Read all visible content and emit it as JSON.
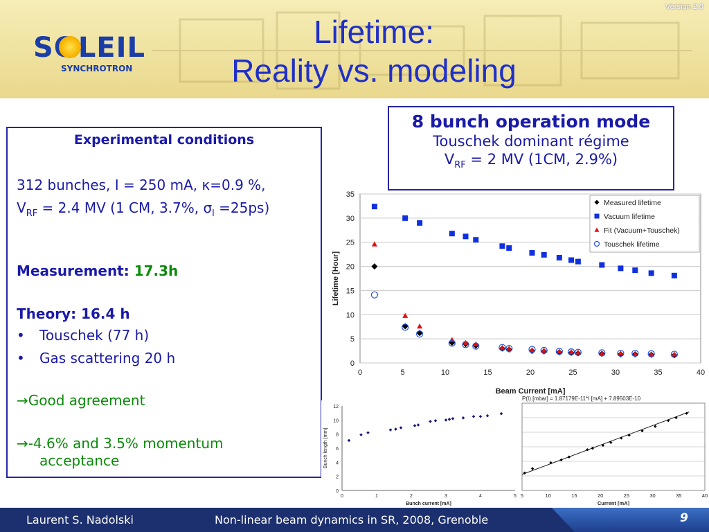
{
  "version": "Version 2.0",
  "logo": {
    "word": "SOLEIL",
    "sub": "SYNCHROTRON"
  },
  "title": {
    "line1": "Lifetime:",
    "line2": "Reality vs. modeling"
  },
  "left_box": {
    "heading": "Experimental conditions",
    "cond_line1": "312 bunches, I = 250 mA, κ=0.9 %,",
    "cond_line2_pre": "V",
    "cond_line2_sub": "RF",
    "cond_line2_post": " = 2.4 MV (1 CM, 3.7%, σ",
    "cond_line2_sub2": "l",
    "cond_line2_end": " =25ps)",
    "measurement_label": "Measurement:",
    "measurement_value": "17.3h",
    "theory_label": "Theory: 16.4 h",
    "bullets": [
      "Touschek (77 h)",
      "Gas scattering 20 h"
    ],
    "good": "→Good agreement",
    "acceptance1": "→-4.6% and 3.5% momentum",
    "acceptance2": "acceptance"
  },
  "right_box": {
    "line1": "8 bunch operation mode",
    "line2": "Touschek dominant régime",
    "line3_pre": "V",
    "line3_sub": "RF",
    "line3_post": " = 2 MV (1CM, 2.9%)"
  },
  "footer": {
    "author": "Laurent S. Nadolski",
    "conference": "Non-linear beam dynamics in SR,  2008, Grenoble",
    "page": "9"
  },
  "colors": {
    "blue_text": "#1a1aa8",
    "title": "#1f2fc8",
    "green": "#0a8a0a",
    "vacuum": "#1030e0",
    "fit": "#e01010",
    "touschek": "#2050e0"
  },
  "chart_data": [
    {
      "type": "scatter",
      "xlabel": "Beam Current [mA]",
      "ylabel": "Lifetime [Hour]",
      "xlim": [
        0,
        40
      ],
      "ylim": [
        0,
        35
      ],
      "xticks": [
        0,
        5,
        10,
        15,
        20,
        25,
        30,
        35,
        40
      ],
      "yticks": [
        0,
        5,
        10,
        15,
        20,
        25,
        30,
        35
      ],
      "grid": true,
      "legend": "top-right",
      "series": [
        {
          "name": "Measured lifetime",
          "marker": "diamond",
          "color": "#000000",
          "x": [
            1.7,
            5.3,
            7.0,
            10.8,
            12.4,
            13.6,
            16.7,
            17.5,
            20.2,
            21.6,
            23.4,
            24.8,
            25.6,
            28.4,
            30.6,
            32.3,
            34.2,
            36.9
          ],
          "y": [
            20.0,
            7.6,
            6.2,
            4.2,
            3.9,
            3.6,
            3.0,
            2.8,
            2.5,
            2.4,
            2.2,
            2.1,
            2.0,
            1.9,
            1.8,
            1.8,
            1.7,
            1.6
          ]
        },
        {
          "name": "Vacuum lifetime",
          "marker": "square",
          "color": "#1030e0",
          "x": [
            1.7,
            5.3,
            7.0,
            10.8,
            12.4,
            13.6,
            16.7,
            17.5,
            20.2,
            21.6,
            23.4,
            24.8,
            25.6,
            28.4,
            30.6,
            32.3,
            34.2,
            36.9
          ],
          "y": [
            32.4,
            30.0,
            29.0,
            26.8,
            26.2,
            25.5,
            24.2,
            23.8,
            22.8,
            22.4,
            21.8,
            21.3,
            21.0,
            20.3,
            19.6,
            19.2,
            18.6,
            18.1
          ]
        },
        {
          "name": "Fit (Vacuum+Touschek)",
          "marker": "triangle",
          "color": "#e01010",
          "x": [
            1.7,
            5.3,
            7.0,
            10.8,
            12.4,
            13.6,
            16.7,
            17.5,
            20.2,
            21.6,
            23.4,
            24.8,
            25.6,
            28.4,
            30.6,
            32.3,
            34.2,
            36.9
          ],
          "y": [
            24.6,
            9.8,
            7.6,
            4.8,
            4.2,
            3.9,
            3.2,
            3.0,
            2.7,
            2.6,
            2.4,
            2.3,
            2.2,
            2.0,
            2.0,
            1.9,
            1.8,
            1.8
          ]
        },
        {
          "name": "Touschek lifetime",
          "marker": "circle",
          "color": "#2050e0",
          "x": [
            1.7,
            5.3,
            7.0,
            10.8,
            12.4,
            13.6,
            16.7,
            17.5,
            20.2,
            21.6,
            23.4,
            24.8,
            25.6,
            28.4,
            30.6,
            32.3,
            34.2,
            36.9
          ],
          "y": [
            14.1,
            7.4,
            6.0,
            4.1,
            3.8,
            3.5,
            3.2,
            3.0,
            2.8,
            2.6,
            2.4,
            2.3,
            2.2,
            2.1,
            2.0,
            2.0,
            1.9,
            1.8
          ]
        }
      ]
    },
    {
      "type": "scatter",
      "xlabel": "Bunch current [mA]",
      "ylabel": "Bunch length [mm]",
      "xlim": [
        0,
        5
      ],
      "ylim": [
        0,
        12
      ],
      "xticks": [
        0,
        1,
        2,
        3,
        4,
        5
      ],
      "yticks": [
        0,
        2,
        4,
        6,
        8,
        10,
        12
      ],
      "grid": false,
      "series": [
        {
          "marker": "diamond",
          "color": "#1a1a7a",
          "x": [
            0.2,
            0.55,
            0.75,
            1.4,
            1.55,
            1.7,
            2.1,
            2.2,
            2.55,
            2.7,
            3.0,
            3.1,
            3.2,
            3.5,
            3.8,
            4.0,
            4.2,
            4.6
          ],
          "y": [
            7.1,
            7.9,
            8.2,
            8.6,
            8.7,
            8.9,
            9.2,
            9.3,
            9.8,
            9.9,
            10.0,
            10.1,
            10.2,
            10.3,
            10.5,
            10.5,
            10.6,
            10.9
          ]
        }
      ]
    },
    {
      "type": "line",
      "title": "P(I) [mbar] = 1.87179E-11*I [mA] + 7.89503E-10",
      "xlabel": "Current [mA]",
      "xlim": [
        5,
        40
      ],
      "xticks": [
        5,
        10,
        15,
        20,
        25,
        30,
        35,
        40
      ],
      "grid": true,
      "series": [
        {
          "marker": "diamond",
          "color": "#000000",
          "x": [
            5.5,
            7.0,
            10.5,
            12.5,
            14.0,
            17.5,
            18.5,
            20.5,
            22.0,
            24.0,
            25.5,
            28.0,
            30.5,
            33.0,
            34.5,
            36.5
          ],
          "y": [
            6.7,
            7.0,
            7.4,
            7.6,
            7.8,
            8.3,
            8.4,
            8.6,
            8.8,
            9.1,
            9.3,
            9.6,
            9.9,
            10.3,
            10.5,
            10.8
          ]
        }
      ]
    }
  ]
}
